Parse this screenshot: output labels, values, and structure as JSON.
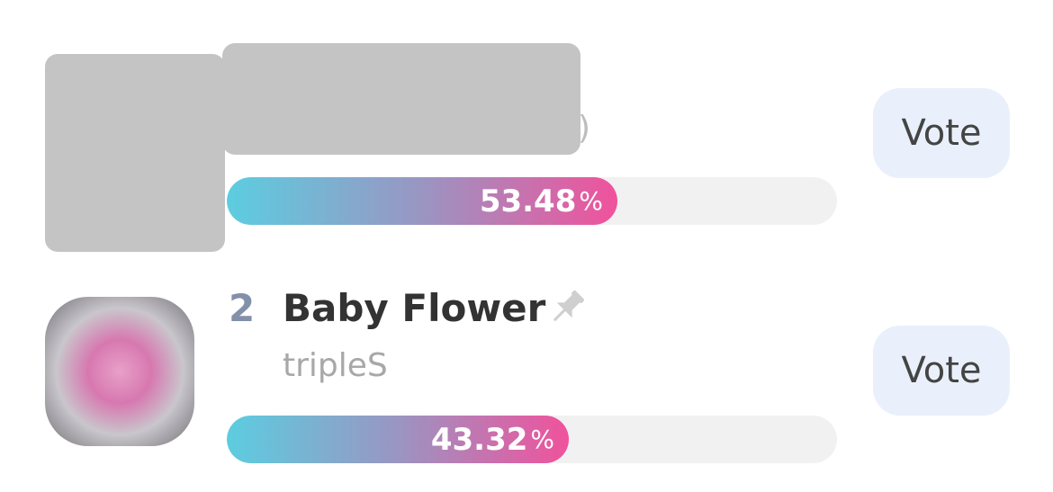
{
  "items": [
    {
      "artist_fragment": ")",
      "percent": 53.48,
      "percent_sign": "%",
      "button": "Vote"
    },
    {
      "rank": "2",
      "title": "Baby Flower",
      "artist": "tripleS",
      "percent": 43.32,
      "percent_sign": "%",
      "button": "Vote"
    }
  ]
}
